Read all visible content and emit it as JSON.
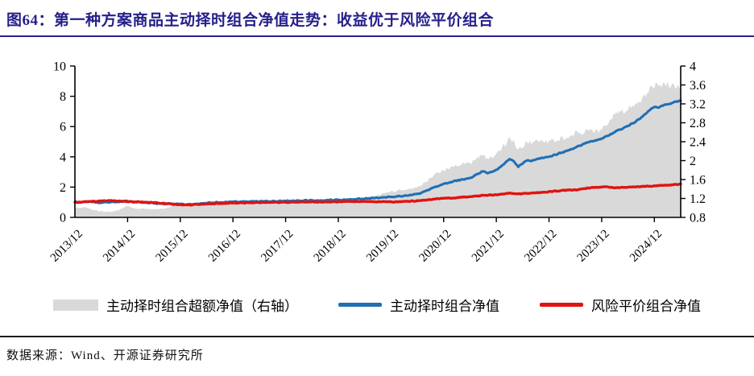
{
  "figure": {
    "title": "图64：第一种方案商品主动择时组合净值走势：收益优于风险平价组合",
    "source": "数据来源：Wind、开源证券研究所",
    "accent_color": "#26208a"
  },
  "chart_data": {
    "type": "line",
    "title": "",
    "x_axis": {
      "tick_labels": [
        "2013/12",
        "2014/12",
        "2015/12",
        "2016/12",
        "2017/12",
        "2018/12",
        "2019/12",
        "2020/12",
        "2021/12",
        "2022/12",
        "2023/12",
        "2024/12"
      ],
      "start": "2013/12",
      "end": "2025/06",
      "frequency": "monthly"
    },
    "left_axis": {
      "min": 0,
      "max": 10,
      "ticks": [
        0,
        2,
        4,
        6,
        8,
        10
      ]
    },
    "right_axis": {
      "min": 0.8,
      "max": 4,
      "ticks": [
        0.8,
        1.2,
        1.6,
        2,
        2.4,
        2.8,
        3.2,
        3.6,
        4
      ]
    },
    "grid": false,
    "legend_position": "bottom",
    "series": [
      {
        "name": "主动择时组合超额净值（右轴）",
        "type": "area",
        "axis": "right",
        "color": "#d9d9d9",
        "values": [
          1.0,
          0.99,
          1.0,
          0.98,
          0.95,
          0.93,
          0.91,
          0.91,
          0.91,
          0.92,
          0.94,
          0.99,
          1.03,
          0.98,
          0.97,
          0.97,
          0.97,
          0.96,
          0.95,
          0.97,
          0.97,
          0.99,
          1.02,
          1.02,
          1.04,
          1.04,
          1.04,
          1.04,
          1.05,
          1.05,
          1.06,
          1.07,
          1.08,
          1.09,
          1.09,
          1.09,
          1.07,
          1.08,
          1.07,
          1.08,
          1.07,
          1.08,
          1.07,
          1.08,
          1.07,
          1.08,
          1.07,
          1.08,
          1.08,
          1.09,
          1.08,
          1.09,
          1.09,
          1.09,
          1.1,
          1.1,
          1.11,
          1.1,
          1.11,
          1.11,
          1.12,
          1.12,
          1.13,
          1.13,
          1.15,
          1.16,
          1.18,
          1.21,
          1.22,
          1.25,
          1.27,
          1.3,
          1.32,
          1.33,
          1.35,
          1.35,
          1.37,
          1.39,
          1.41,
          1.46,
          1.52,
          1.61,
          1.67,
          1.71,
          1.76,
          1.8,
          1.84,
          1.86,
          1.88,
          1.89,
          1.9,
          1.96,
          2.03,
          2.1,
          1.99,
          2.03,
          2.1,
          2.19,
          2.29,
          2.41,
          2.36,
          2.16,
          2.26,
          2.37,
          2.31,
          2.38,
          2.38,
          2.37,
          2.35,
          2.37,
          2.4,
          2.42,
          2.44,
          2.49,
          2.53,
          2.55,
          2.55,
          2.55,
          2.56,
          2.57,
          2.6,
          2.65,
          2.78,
          2.9,
          2.96,
          2.98,
          3.03,
          3.08,
          3.17,
          3.24,
          3.34,
          3.43,
          3.51,
          3.45,
          3.49,
          3.5,
          3.51,
          3.51,
          3.5
        ]
      },
      {
        "name": "主动择时组合净值",
        "type": "line",
        "axis": "left",
        "color": "#1f6fb4",
        "values": [
          1.0,
          1.01,
          1.03,
          1.02,
          1.0,
          0.99,
          0.98,
          0.99,
          1.0,
          1.01,
          1.02,
          1.05,
          1.08,
          1.02,
          1.0,
          0.99,
          0.97,
          0.95,
          0.93,
          0.92,
          0.9,
          0.89,
          0.9,
          0.88,
          0.88,
          0.86,
          0.85,
          0.87,
          0.9,
          0.92,
          0.94,
          0.96,
          0.98,
          1.0,
          1.01,
          1.02,
          1.02,
          1.03,
          1.03,
          1.04,
          1.04,
          1.05,
          1.05,
          1.06,
          1.06,
          1.07,
          1.07,
          1.08,
          1.08,
          1.09,
          1.09,
          1.1,
          1.1,
          1.11,
          1.12,
          1.12,
          1.13,
          1.13,
          1.14,
          1.14,
          1.15,
          1.16,
          1.18,
          1.19,
          1.21,
          1.22,
          1.24,
          1.26,
          1.27,
          1.29,
          1.31,
          1.33,
          1.35,
          1.37,
          1.4,
          1.42,
          1.45,
          1.5,
          1.55,
          1.65,
          1.75,
          1.9,
          2.0,
          2.1,
          2.2,
          2.28,
          2.35,
          2.42,
          2.5,
          2.55,
          2.62,
          2.75,
          2.9,
          3.05,
          2.9,
          3.0,
          3.15,
          3.35,
          3.6,
          3.85,
          3.7,
          3.35,
          3.55,
          3.75,
          3.7,
          3.85,
          3.9,
          3.95,
          4.0,
          4.1,
          4.2,
          4.3,
          4.4,
          4.5,
          4.6,
          4.72,
          4.85,
          4.95,
          5.05,
          5.12,
          5.2,
          5.35,
          5.5,
          5.65,
          5.8,
          5.9,
          6.05,
          6.2,
          6.4,
          6.6,
          6.85,
          7.1,
          7.3,
          7.25,
          7.4,
          7.45,
          7.55,
          7.65,
          7.7
        ]
      },
      {
        "name": "风险平价组合净值",
        "type": "line",
        "axis": "left",
        "color": "#e01310",
        "values": [
          1.0,
          1.02,
          1.03,
          1.04,
          1.05,
          1.06,
          1.08,
          1.09,
          1.1,
          1.1,
          1.08,
          1.06,
          1.05,
          1.04,
          1.03,
          1.02,
          1.0,
          0.99,
          0.98,
          0.95,
          0.93,
          0.9,
          0.88,
          0.86,
          0.85,
          0.83,
          0.82,
          0.84,
          0.86,
          0.88,
          0.89,
          0.9,
          0.91,
          0.92,
          0.93,
          0.94,
          0.95,
          0.95,
          0.96,
          0.96,
          0.97,
          0.97,
          0.98,
          0.98,
          0.99,
          0.99,
          1.0,
          1.0,
          1.0,
          1.0,
          1.01,
          1.01,
          1.01,
          1.02,
          1.02,
          1.02,
          1.02,
          1.03,
          1.03,
          1.03,
          1.03,
          1.04,
          1.04,
          1.05,
          1.05,
          1.05,
          1.05,
          1.04,
          1.04,
          1.03,
          1.03,
          1.02,
          1.02,
          1.03,
          1.04,
          1.05,
          1.06,
          1.08,
          1.1,
          1.13,
          1.15,
          1.18,
          1.2,
          1.23,
          1.25,
          1.27,
          1.28,
          1.3,
          1.33,
          1.35,
          1.38,
          1.4,
          1.43,
          1.45,
          1.46,
          1.48,
          1.5,
          1.53,
          1.57,
          1.6,
          1.57,
          1.55,
          1.57,
          1.58,
          1.6,
          1.62,
          1.64,
          1.67,
          1.7,
          1.73,
          1.75,
          1.78,
          1.8,
          1.81,
          1.82,
          1.85,
          1.9,
          1.94,
          1.97,
          1.99,
          2.0,
          2.02,
          1.98,
          1.95,
          1.96,
          1.98,
          2.0,
          2.01,
          2.02,
          2.04,
          2.05,
          2.07,
          2.08,
          2.1,
          2.12,
          2.13,
          2.15,
          2.18,
          2.2
        ]
      }
    ]
  }
}
